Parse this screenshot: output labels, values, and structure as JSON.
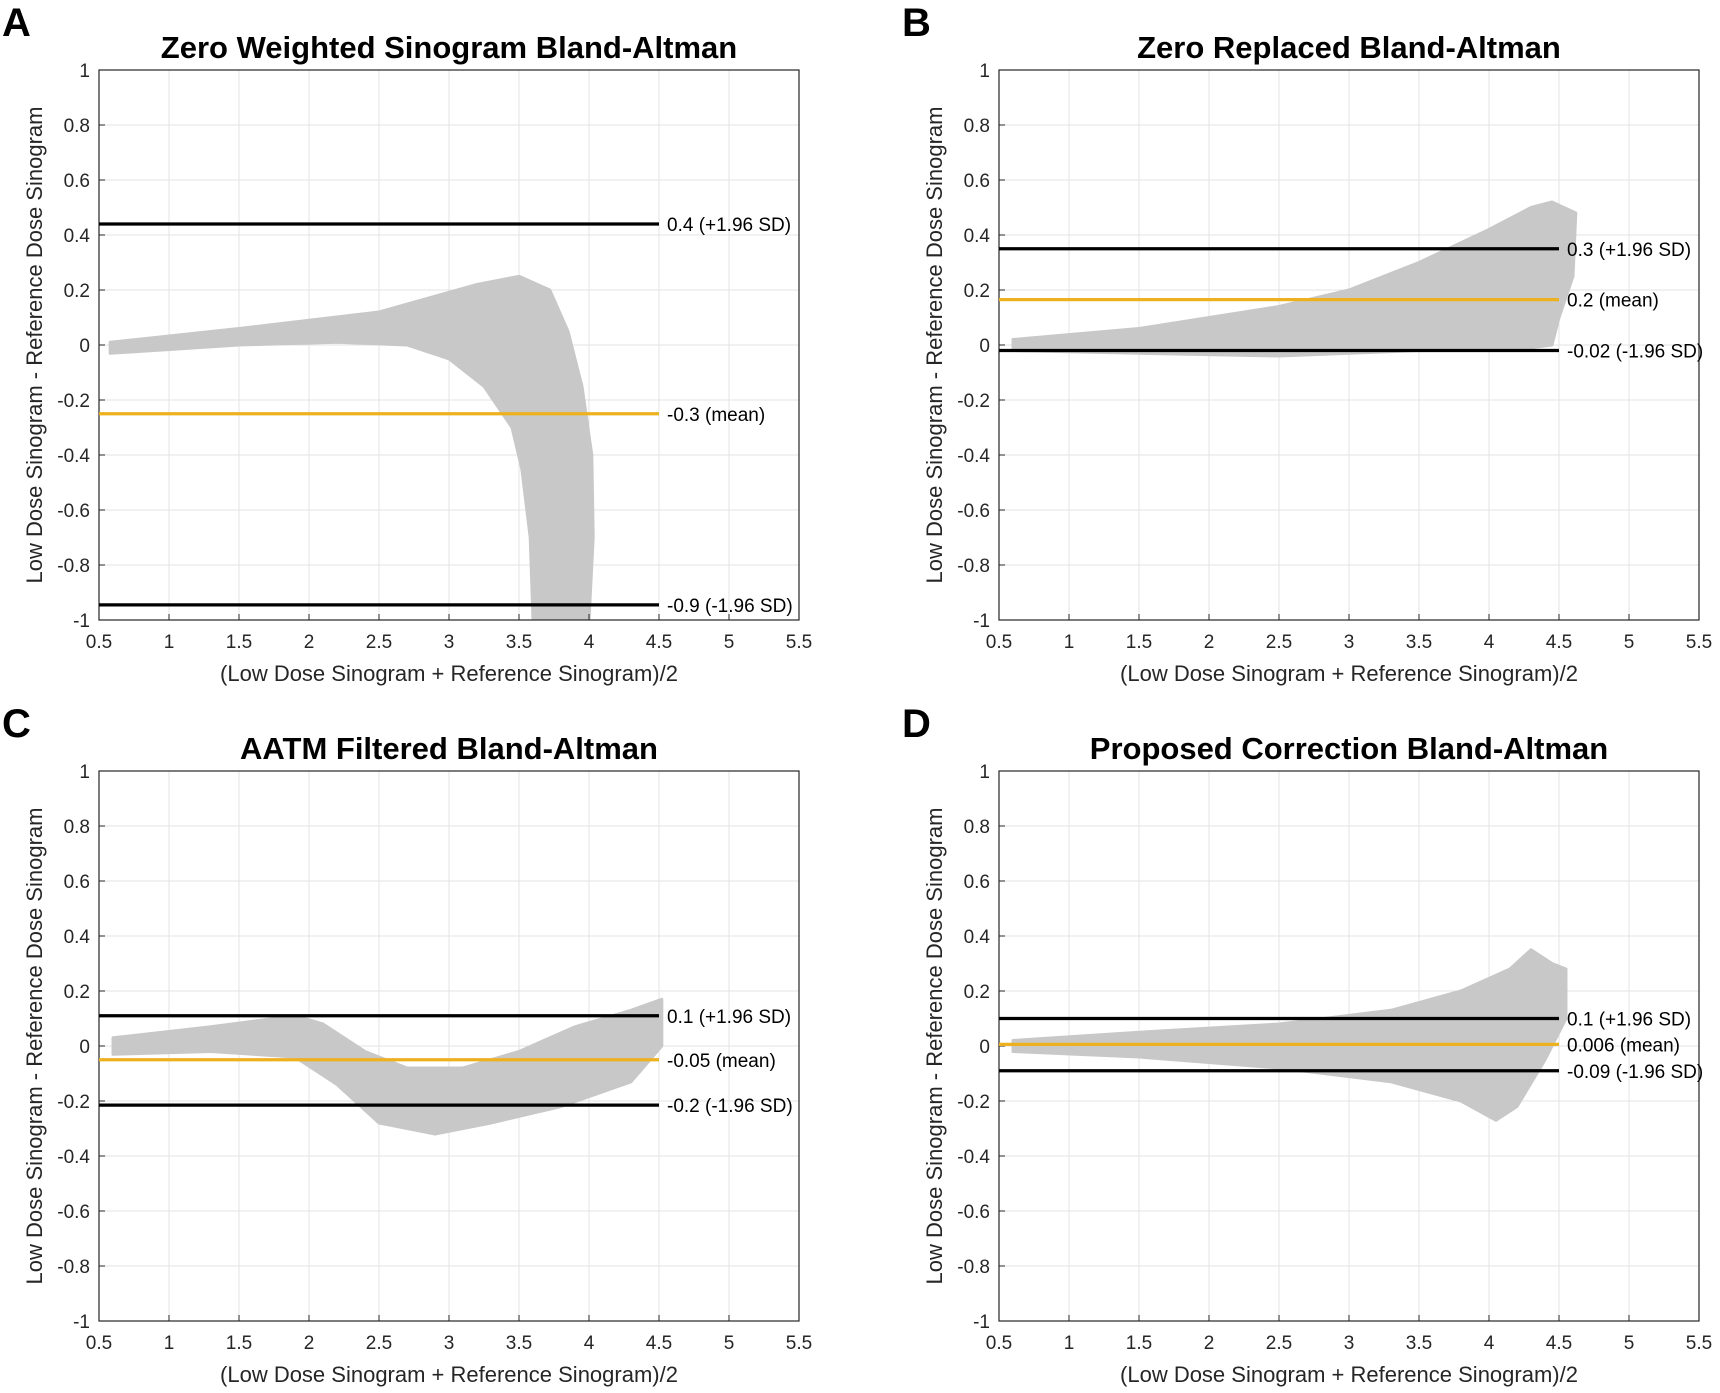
{
  "chart_data": [
    {
      "type": "scatter",
      "panel_letter": "A",
      "title": "Zero Weighted Sinogram Bland-Altman",
      "xlabel": "(Low Dose Sinogram + Reference Sinogram)/2",
      "ylabel": "Low Dose Sinogram - Reference Dose Sinogram",
      "xlim": [
        0.5,
        5.5
      ],
      "ylim": [
        -1,
        1
      ],
      "xticks": [
        0.5,
        1,
        1.5,
        2,
        2.5,
        3,
        3.5,
        4,
        4.5,
        5,
        5.5
      ],
      "xtick_labels": [
        "0.5",
        "1",
        "1.5",
        "2",
        "2.5",
        "3",
        "3.5",
        "4",
        "4.5",
        "5",
        "5.5"
      ],
      "yticks": [
        -1,
        -0.8,
        -0.6,
        -0.4,
        -0.2,
        0,
        0.2,
        0.4,
        0.6,
        0.8,
        1
      ],
      "ytick_labels": [
        "-1",
        "-0.8",
        "-0.6",
        "-0.4",
        "-0.2",
        "0",
        "0.2",
        "0.4",
        "0.6",
        "0.8",
        "1"
      ],
      "grid": true,
      "scatter_color": "#c8c8c8",
      "scatter_region": [
        [
          0.58,
          0.01
        ],
        [
          1.5,
          0.06
        ],
        [
          2.5,
          0.12
        ],
        [
          3.2,
          0.22
        ],
        [
          3.5,
          0.25
        ],
        [
          3.72,
          0.2
        ],
        [
          3.85,
          0.05
        ],
        [
          3.95,
          -0.15
        ],
        [
          4.02,
          -0.4
        ],
        [
          4.03,
          -0.7
        ],
        [
          4.0,
          -1.0
        ],
        [
          3.6,
          -1.0
        ],
        [
          3.58,
          -0.7
        ],
        [
          3.52,
          -0.45
        ],
        [
          3.45,
          -0.3
        ],
        [
          3.25,
          -0.15
        ],
        [
          3.0,
          -0.05
        ],
        [
          2.7,
          0.0
        ],
        [
          2.2,
          0.01
        ],
        [
          1.5,
          0.0
        ],
        [
          0.58,
          -0.03
        ]
      ],
      "ref_lines": [
        {
          "y": 0.44,
          "label": "0.4 (+1.96 SD)",
          "color": "#000000"
        },
        {
          "y": -0.25,
          "label": "-0.3 (mean)",
          "color": "#edb120"
        },
        {
          "y": -0.945,
          "label": "-0.9 (-1.96 SD)",
          "color": "#000000"
        }
      ]
    },
    {
      "type": "scatter",
      "panel_letter": "B",
      "title": "Zero Replaced Bland-Altman",
      "xlabel": "(Low Dose Sinogram + Reference Sinogram)/2",
      "ylabel": "Low Dose Sinogram - Reference Dose Sinogram",
      "xlim": [
        0.5,
        5.5
      ],
      "ylim": [
        -1,
        1
      ],
      "xticks": [
        0.5,
        1,
        1.5,
        2,
        2.5,
        3,
        3.5,
        4,
        4.5,
        5,
        5.5
      ],
      "xtick_labels": [
        "0.5",
        "1",
        "1.5",
        "2",
        "2.5",
        "3",
        "3.5",
        "4",
        "4.5",
        "5",
        "5.5"
      ],
      "yticks": [
        -1,
        -0.8,
        -0.6,
        -0.4,
        -0.2,
        0,
        0.2,
        0.4,
        0.6,
        0.8,
        1
      ],
      "ytick_labels": [
        "-1",
        "-0.8",
        "-0.6",
        "-0.4",
        "-0.2",
        "0",
        "0.2",
        "0.4",
        "0.6",
        "0.8",
        "1"
      ],
      "grid": true,
      "scatter_color": "#c8c8c8",
      "scatter_region": [
        [
          0.6,
          0.02
        ],
        [
          1.5,
          0.06
        ],
        [
          2.5,
          0.14
        ],
        [
          3.0,
          0.2
        ],
        [
          3.5,
          0.3
        ],
        [
          4.0,
          0.42
        ],
        [
          4.3,
          0.5
        ],
        [
          4.45,
          0.52
        ],
        [
          4.62,
          0.48
        ],
        [
          4.6,
          0.25
        ],
        [
          4.5,
          0.1
        ],
        [
          4.45,
          0.0
        ],
        [
          4.3,
          -0.01
        ],
        [
          3.5,
          -0.02
        ],
        [
          2.5,
          -0.04
        ],
        [
          1.5,
          -0.03
        ],
        [
          0.6,
          -0.02
        ]
      ],
      "ref_lines": [
        {
          "y": 0.35,
          "label": "0.3 (+1.96 SD)",
          "color": "#000000"
        },
        {
          "y": 0.165,
          "label": "0.2 (mean)",
          "color": "#edb120"
        },
        {
          "y": -0.02,
          "label": "-0.02 (-1.96 SD)",
          "color": "#000000"
        }
      ]
    },
    {
      "type": "scatter",
      "panel_letter": "C",
      "title": "AATM Filtered Bland-Altman",
      "xlabel": "(Low Dose Sinogram + Reference Sinogram)/2",
      "ylabel": "Low Dose Sinogram - Reference Dose Sinogram",
      "xlim": [
        0.5,
        5.5
      ],
      "ylim": [
        -1,
        1
      ],
      "xticks": [
        0.5,
        1,
        1.5,
        2,
        2.5,
        3,
        3.5,
        4,
        4.5,
        5,
        5.5
      ],
      "xtick_labels": [
        "0.5",
        "1",
        "1.5",
        "2",
        "2.5",
        "3",
        "3.5",
        "4",
        "4.5",
        "5",
        "5.5"
      ],
      "yticks": [
        -1,
        -0.8,
        -0.6,
        -0.4,
        -0.2,
        0,
        0.2,
        0.4,
        0.6,
        0.8,
        1
      ],
      "ytick_labels": [
        "-1",
        "-0.8",
        "-0.6",
        "-0.4",
        "-0.2",
        "0",
        "0.2",
        "0.4",
        "0.6",
        "0.8",
        "1"
      ],
      "grid": true,
      "scatter_color": "#c8c8c8",
      "scatter_region": [
        [
          0.6,
          0.03
        ],
        [
          1.3,
          0.07
        ],
        [
          1.9,
          0.11
        ],
        [
          2.1,
          0.08
        ],
        [
          2.4,
          -0.02
        ],
        [
          2.7,
          -0.08
        ],
        [
          3.1,
          -0.08
        ],
        [
          3.5,
          -0.02
        ],
        [
          3.9,
          0.07
        ],
        [
          4.3,
          0.13
        ],
        [
          4.52,
          0.17
        ],
        [
          4.52,
          0.0
        ],
        [
          4.3,
          -0.13
        ],
        [
          3.8,
          -0.22
        ],
        [
          3.3,
          -0.28
        ],
        [
          2.9,
          -0.32
        ],
        [
          2.5,
          -0.28
        ],
        [
          2.2,
          -0.14
        ],
        [
          1.9,
          -0.04
        ],
        [
          1.3,
          -0.02
        ],
        [
          0.6,
          -0.03
        ]
      ],
      "ref_lines": [
        {
          "y": 0.11,
          "label": "0.1 (+1.96 SD)",
          "color": "#000000"
        },
        {
          "y": -0.05,
          "label": "-0.05 (mean)",
          "color": "#edb120"
        },
        {
          "y": -0.215,
          "label": "-0.2 (-1.96 SD)",
          "color": "#000000"
        }
      ]
    },
    {
      "type": "scatter",
      "panel_letter": "D",
      "title": "Proposed Correction Bland-Altman",
      "xlabel": "(Low Dose Sinogram + Reference Sinogram)/2",
      "ylabel": "Low Dose Sinogram - Reference Dose Sinogram",
      "xlim": [
        0.5,
        5.5
      ],
      "ylim": [
        -1,
        1
      ],
      "xticks": [
        0.5,
        1,
        1.5,
        2,
        2.5,
        3,
        3.5,
        4,
        4.5,
        5,
        5.5
      ],
      "xtick_labels": [
        "0.5",
        "1",
        "1.5",
        "2",
        "2.5",
        "3",
        "3.5",
        "4",
        "4.5",
        "5",
        "5.5"
      ],
      "yticks": [
        -1,
        -0.8,
        -0.6,
        -0.4,
        -0.2,
        0,
        0.2,
        0.4,
        0.6,
        0.8,
        1
      ],
      "ytick_labels": [
        "-1",
        "-0.8",
        "-0.6",
        "-0.4",
        "-0.2",
        "0",
        "0.2",
        "0.4",
        "0.6",
        "0.8",
        "1"
      ],
      "grid": true,
      "scatter_color": "#c8c8c8",
      "scatter_region": [
        [
          0.6,
          0.02
        ],
        [
          1.5,
          0.05
        ],
        [
          2.5,
          0.08
        ],
        [
          3.3,
          0.13
        ],
        [
          3.8,
          0.2
        ],
        [
          4.15,
          0.28
        ],
        [
          4.3,
          0.35
        ],
        [
          4.45,
          0.3
        ],
        [
          4.55,
          0.28
        ],
        [
          4.55,
          0.1
        ],
        [
          4.4,
          -0.05
        ],
        [
          4.2,
          -0.22
        ],
        [
          4.05,
          -0.27
        ],
        [
          3.8,
          -0.2
        ],
        [
          3.3,
          -0.13
        ],
        [
          2.5,
          -0.08
        ],
        [
          1.5,
          -0.04
        ],
        [
          0.6,
          -0.02
        ]
      ],
      "ref_lines": [
        {
          "y": 0.1,
          "label": "0.1 (+1.96 SD)",
          "color": "#000000"
        },
        {
          "y": 0.006,
          "label": "0.006 (mean)",
          "color": "#edb120"
        },
        {
          "y": -0.09,
          "label": "-0.09 (-1.96 SD)",
          "color": "#000000"
        }
      ]
    }
  ]
}
